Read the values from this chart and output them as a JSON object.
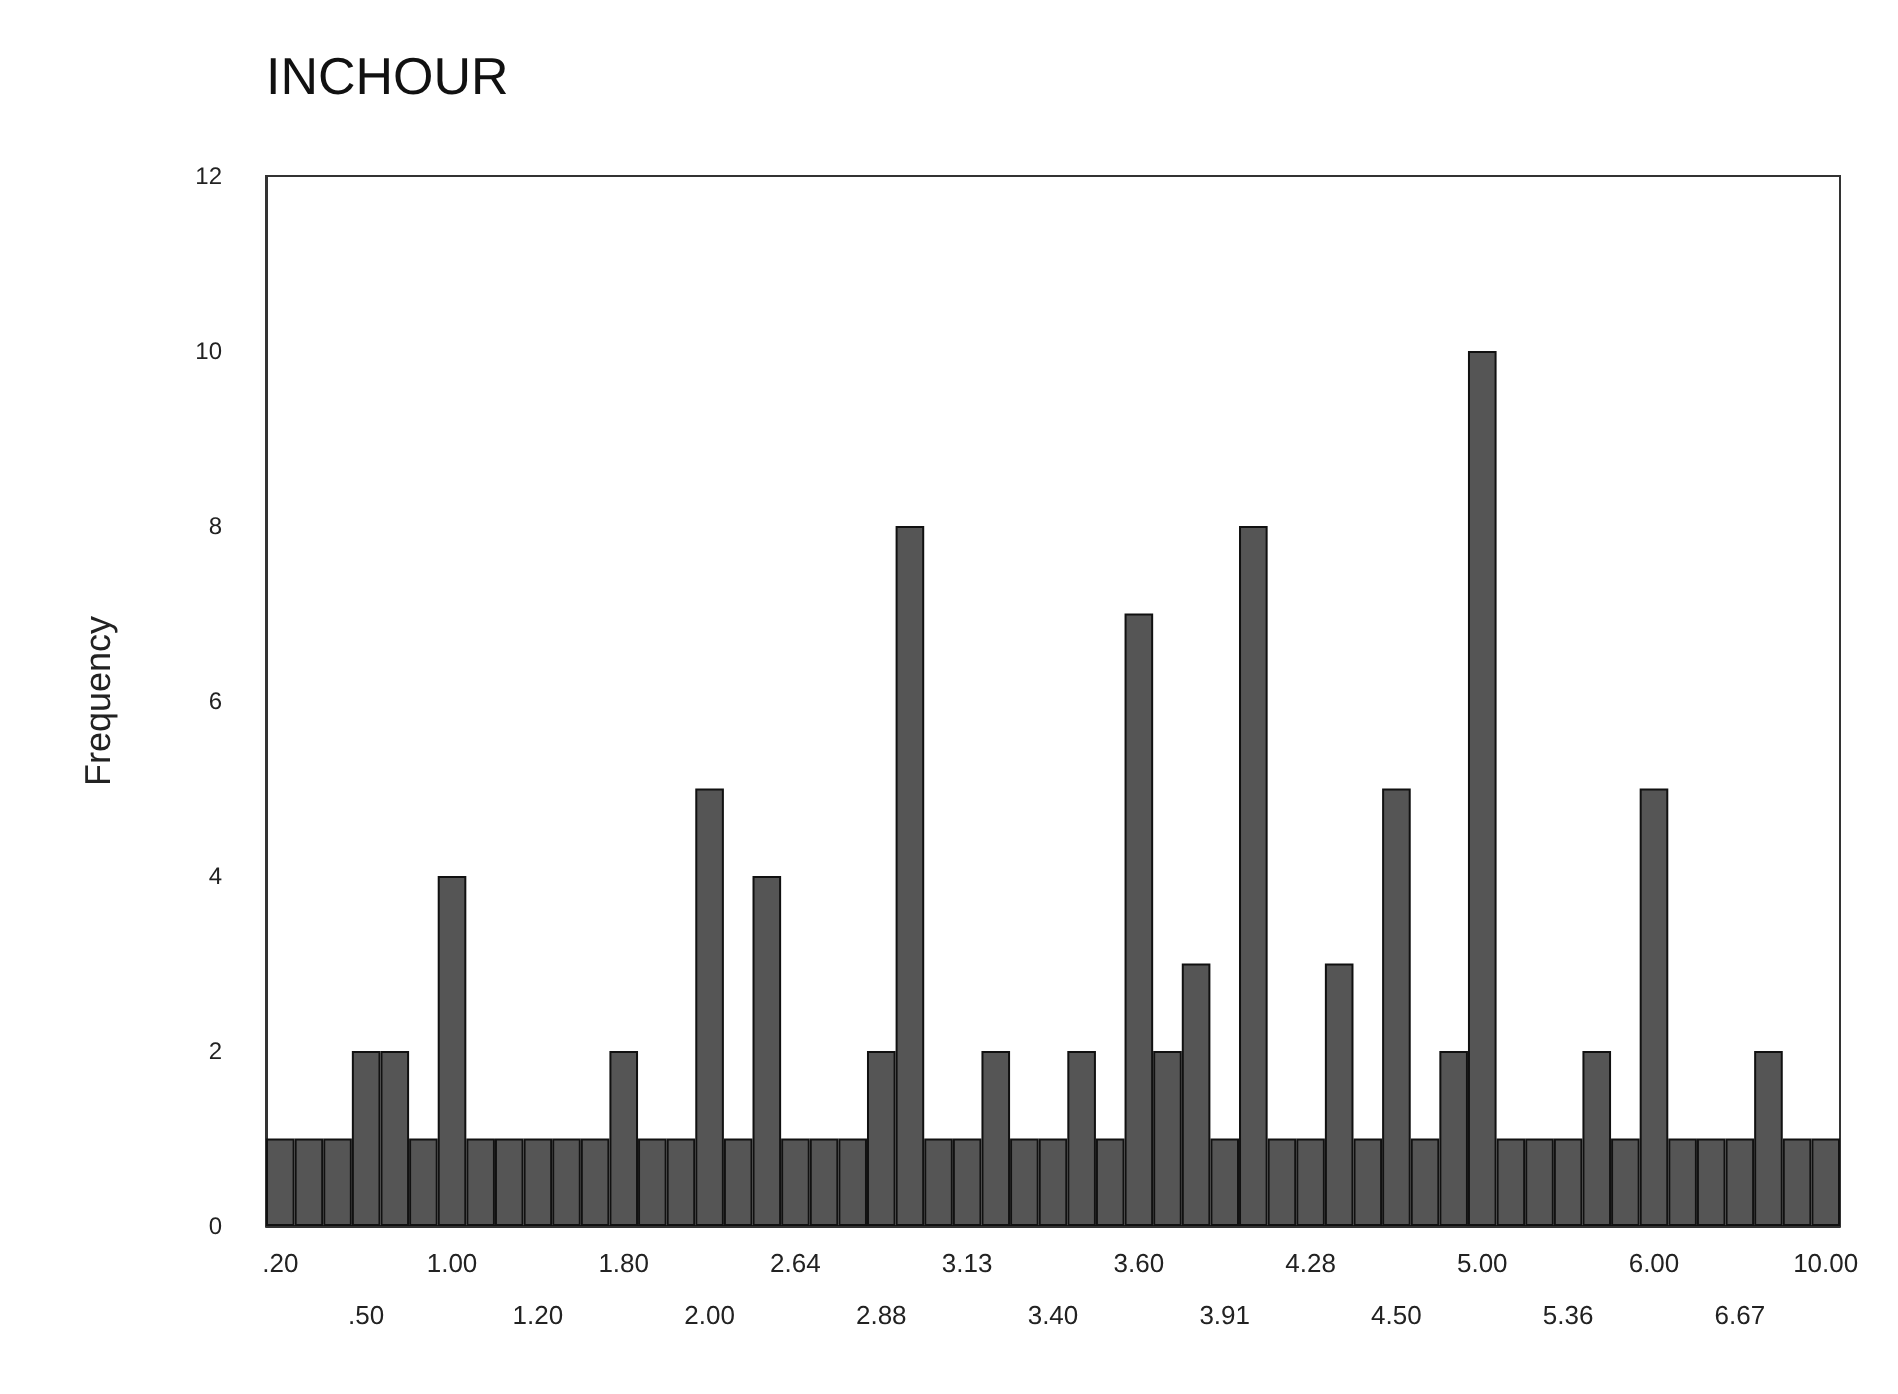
{
  "chart_data": {
    "type": "bar",
    "title": "INCHOUR",
    "ylabel": "Frequency",
    "categories": [
      ".20",
      null,
      null,
      ".50",
      null,
      null,
      "1.00",
      null,
      null,
      "1.20",
      null,
      null,
      "1.80",
      null,
      null,
      "2.00",
      null,
      null,
      "2.64",
      null,
      null,
      "2.88",
      null,
      null,
      "3.13",
      null,
      null,
      "3.40",
      null,
      null,
      "3.60",
      null,
      null,
      "3.91",
      null,
      null,
      "4.28",
      null,
      null,
      "4.50",
      null,
      null,
      "5.00",
      null,
      null,
      "5.36",
      null,
      null,
      "6.00",
      null,
      null,
      "6.67",
      null,
      null,
      "10.00"
    ],
    "values": [
      1,
      1,
      1,
      2,
      2,
      1,
      4,
      1,
      1,
      1,
      1,
      1,
      2,
      1,
      1,
      5,
      1,
      4,
      1,
      1,
      1,
      2,
      8,
      1,
      1,
      2,
      1,
      1,
      2,
      1,
      7,
      2,
      3,
      1,
      8,
      1,
      1,
      3,
      1,
      5,
      1,
      2,
      10,
      1,
      1,
      1,
      2,
      1,
      5,
      1,
      1,
      1,
      2,
      1,
      1
    ],
    "color": "#555555",
    "ylim": [
      0,
      12
    ],
    "yticks": [
      0,
      2,
      4,
      6,
      8,
      10,
      12
    ],
    "grid": false
  }
}
